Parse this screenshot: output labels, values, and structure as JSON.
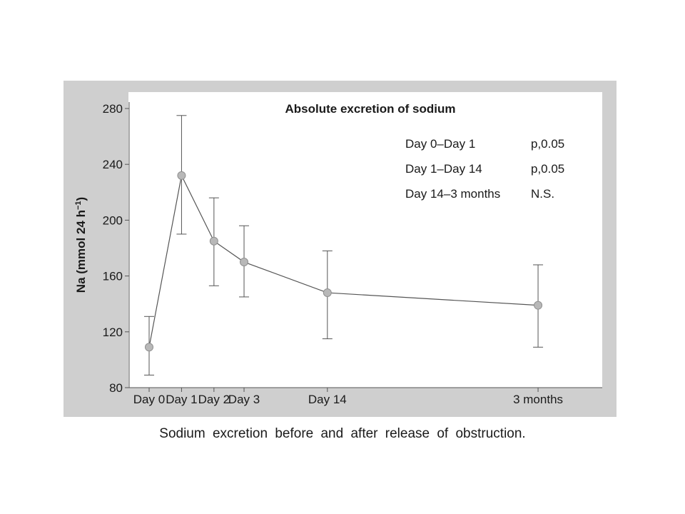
{
  "caption": "Sodium excretion before and after release of obstruction.",
  "colors": {
    "panel_background": "#cfcfcf",
    "plot_background": "#ffffff",
    "line": "#555555",
    "marker_fill": "#b8b8b8",
    "text": "#1a1a1a"
  },
  "chart_data": {
    "type": "line",
    "title": "Absolute excretion of sodium",
    "xlabel": "",
    "ylabel": "Na (mmol 24 h",
    "ylabel_superscript": "−1",
    "ylabel_close": ")",
    "ylim": [
      80,
      280
    ],
    "yticks": [
      80,
      120,
      160,
      200,
      240,
      280
    ],
    "x_axis_unit": "days",
    "xlim": [
      0,
      90
    ],
    "xticks": [
      {
        "day": 0,
        "label": "Day 0"
      },
      {
        "day": 7,
        "label": "Day 1"
      },
      {
        "day": 14,
        "label": "Day 2"
      },
      {
        "day": 20.5,
        "label": "Day 3"
      },
      {
        "day": 38.5,
        "label": "Day 14"
      },
      {
        "day": 84,
        "label": "3 months"
      }
    ],
    "series": [
      {
        "points": [
          {
            "day": 0,
            "label": "Day 0",
            "mean": 109,
            "upper": 131,
            "lower": 89
          },
          {
            "day": 7,
            "label": "Day 1",
            "mean": 232,
            "upper": 275,
            "lower": 190
          },
          {
            "day": 14,
            "label": "Day 2",
            "mean": 185,
            "upper": 216,
            "lower": 153
          },
          {
            "day": 20.5,
            "label": "Day 3",
            "mean": 170,
            "upper": 196,
            "lower": 145
          },
          {
            "day": 38.5,
            "label": "Day 14",
            "mean": 148,
            "upper": 178,
            "lower": 115
          },
          {
            "day": 84,
            "label": "3 months",
            "mean": 139,
            "upper": 168,
            "lower": 109
          }
        ]
      }
    ],
    "annotations": [
      {
        "comparison": "Day 0–Day 1",
        "significance": "p,0.05"
      },
      {
        "comparison": "Day 1–Day 14",
        "significance": "p,0.05"
      },
      {
        "comparison": "Day 14–3 months",
        "significance": "N.S."
      }
    ],
    "grid": false,
    "legend": "none"
  }
}
